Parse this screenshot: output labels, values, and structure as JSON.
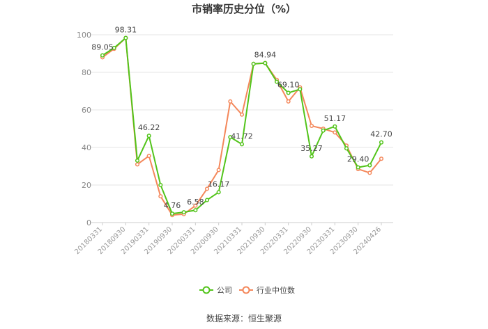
{
  "chart_data": {
    "type": "line",
    "title": "市销率历史分位（%）",
    "source": "数据来源：恒生聚源",
    "ylim": [
      0,
      100
    ],
    "yticks": [
      "0",
      "20",
      "40",
      "60",
      "80",
      "100"
    ],
    "grid": "horizontal",
    "legend_position": "bottom",
    "x_tick_labels": [
      "20180331",
      "20180930",
      "20190331",
      "20190930",
      "20200331",
      "20200930",
      "20210331",
      "20210930",
      "20220331",
      "20220930",
      "20230331",
      "20230930",
      "20240426"
    ],
    "x": [
      "20180331",
      "20180630",
      "20180930",
      "20181231",
      "20190331",
      "20190630",
      "20190930",
      "20191231",
      "20200331",
      "20200630",
      "20200930",
      "20201231",
      "20210331",
      "20210630",
      "20210930",
      "20211231",
      "20220331",
      "20220630",
      "20220930",
      "20221231",
      "20230331",
      "20230630",
      "20230930",
      "20231231",
      "20240426"
    ],
    "series": [
      {
        "name": "公司",
        "color": "#52c41a",
        "values": [
          89.05,
          93.0,
          98.31,
          33.0,
          46.22,
          20.0,
          4.76,
          5.5,
          6.58,
          12.0,
          16.17,
          45.5,
          41.72,
          84.5,
          84.94,
          75.0,
          69.1,
          71.0,
          35.27,
          49.0,
          51.17,
          39.5,
          29.4,
          30.5,
          42.7
        ]
      },
      {
        "name": "行业中位数",
        "color": "#f4875a",
        "values": [
          88.0,
          92.5,
          98.31,
          31.0,
          35.5,
          14.0,
          4.0,
          4.5,
          9.0,
          18.0,
          28.0,
          64.5,
          57.5,
          84.5,
          84.94,
          76.0,
          64.5,
          72.0,
          51.5,
          50.0,
          48.0,
          41.0,
          28.5,
          26.5,
          34.0
        ]
      }
    ],
    "data_labels": [
      {
        "series": 0,
        "index": 0,
        "text": "89.05"
      },
      {
        "series": 0,
        "index": 2,
        "text": "98.31"
      },
      {
        "series": 0,
        "index": 4,
        "text": "46.22"
      },
      {
        "series": 0,
        "index": 6,
        "text": "4.76"
      },
      {
        "series": 0,
        "index": 8,
        "text": "6.58"
      },
      {
        "series": 0,
        "index": 10,
        "text": "16.17"
      },
      {
        "series": 0,
        "index": 12,
        "text": "41.72"
      },
      {
        "series": 0,
        "index": 14,
        "text": "84.94"
      },
      {
        "series": 0,
        "index": 16,
        "text": "69.10"
      },
      {
        "series": 0,
        "index": 18,
        "text": "35.27"
      },
      {
        "series": 0,
        "index": 20,
        "text": "51.17"
      },
      {
        "series": 0,
        "index": 22,
        "text": "29.40"
      },
      {
        "series": 0,
        "index": 24,
        "text": "42.70"
      }
    ]
  }
}
